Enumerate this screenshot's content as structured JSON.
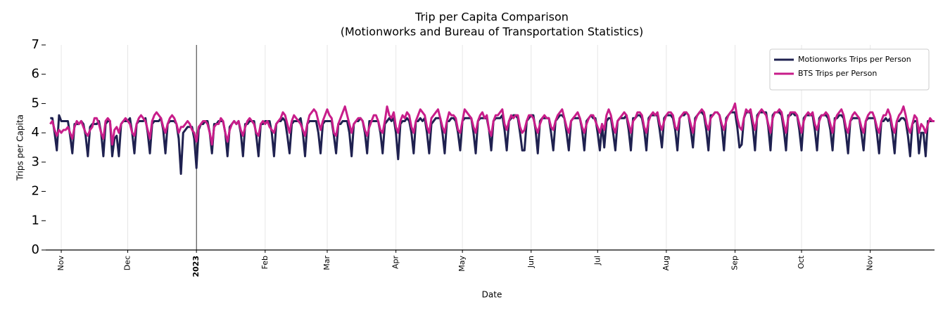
{
  "chart_data": {
    "type": "line",
    "title": "Trip per Capita Comparison",
    "subtitle": "(Motionworks and Bureau of Transportation Statistics)",
    "x_label": "Date",
    "y_label": "Trips per Capita",
    "xlim": [
      -2,
      399
    ],
    "ylim": [
      0,
      7
    ],
    "yticks": [
      0,
      1,
      2,
      3,
      4,
      5,
      6,
      7
    ],
    "xticks": [
      {
        "value": 5,
        "label": "Nov"
      },
      {
        "value": 35,
        "label": "Dec"
      },
      {
        "value": 66,
        "label": "2023"
      },
      {
        "value": 97,
        "label": "Feb"
      },
      {
        "value": 125,
        "label": "Mar"
      },
      {
        "value": 156,
        "label": "Apr"
      },
      {
        "value": 186,
        "label": "May"
      },
      {
        "value": 217,
        "label": "Jun"
      },
      {
        "value": 247,
        "label": "Jul"
      },
      {
        "value": 278,
        "label": "Aug"
      },
      {
        "value": 309,
        "label": "Sep"
      },
      {
        "value": 339,
        "label": "Oct"
      },
      {
        "value": 370,
        "label": "Nov"
      }
    ],
    "grid": true,
    "legend": "upper right",
    "series": [
      {
        "name": "Motionworks Trips per Person",
        "color": "#1f2150",
        "values": [
          4.5,
          4.5,
          4.0,
          3.4,
          4.6,
          4.4,
          4.4,
          4.4,
          4.4,
          3.9,
          3.3,
          4.3,
          4.3,
          4.3,
          4.4,
          4.3,
          3.9,
          3.2,
          4.2,
          4.3,
          4.3,
          4.3,
          4.4,
          4.0,
          3.2,
          4.3,
          4.4,
          4.4,
          3.2,
          3.8,
          3.9,
          3.2,
          4.3,
          4.4,
          4.4,
          4.4,
          4.5,
          4.0,
          3.3,
          4.3,
          4.4,
          4.4,
          4.4,
          4.5,
          4.0,
          3.3,
          4.3,
          4.4,
          4.4,
          4.4,
          4.5,
          4.1,
          3.3,
          4.3,
          4.4,
          4.4,
          4.4,
          4.3,
          3.8,
          2.6,
          4.0,
          4.1,
          4.2,
          4.2,
          4.2,
          3.8,
          2.8,
          4.1,
          4.3,
          4.3,
          4.4,
          4.4,
          4.0,
          3.3,
          4.3,
          4.3,
          4.4,
          4.4,
          4.4,
          4.0,
          3.2,
          4.2,
          4.3,
          4.4,
          4.3,
          4.4,
          4.0,
          3.2,
          4.3,
          4.3,
          4.4,
          4.4,
          4.4,
          3.9,
          3.2,
          4.3,
          4.3,
          4.4,
          4.4,
          4.4,
          4.0,
          3.2,
          4.3,
          4.4,
          4.4,
          4.5,
          4.4,
          3.9,
          3.3,
          4.3,
          4.4,
          4.4,
          4.4,
          4.5,
          4.0,
          3.2,
          4.3,
          4.4,
          4.4,
          4.4,
          4.4,
          4.0,
          3.3,
          4.3,
          4.4,
          4.4,
          4.4,
          4.4,
          3.9,
          3.3,
          4.3,
          4.3,
          4.4,
          4.4,
          4.4,
          4.0,
          3.2,
          4.3,
          4.4,
          4.4,
          4.5,
          4.4,
          4.0,
          3.3,
          4.4,
          4.4,
          4.4,
          4.4,
          4.4,
          4.0,
          3.3,
          4.3,
          4.4,
          4.5,
          4.4,
          4.5,
          4.0,
          3.1,
          4.3,
          4.4,
          4.4,
          4.5,
          4.4,
          4.0,
          3.3,
          4.4,
          4.4,
          4.5,
          4.4,
          4.5,
          4.0,
          3.3,
          4.3,
          4.4,
          4.5,
          4.5,
          4.5,
          4.0,
          3.3,
          4.4,
          4.4,
          4.5,
          4.5,
          4.4,
          4.0,
          3.4,
          4.4,
          4.5,
          4.5,
          4.5,
          4.5,
          4.0,
          3.3,
          4.4,
          4.5,
          4.5,
          4.5,
          4.5,
          4.1,
          3.4,
          4.4,
          4.5,
          4.5,
          4.5,
          4.6,
          4.1,
          3.4,
          4.4,
          4.5,
          4.6,
          4.6,
          4.5,
          4.0,
          3.4,
          3.4,
          4.4,
          4.5,
          4.6,
          4.6,
          4.1,
          3.3,
          4.4,
          4.5,
          4.5,
          4.5,
          4.5,
          4.0,
          3.4,
          4.4,
          4.5,
          4.6,
          4.6,
          4.5,
          4.0,
          3.4,
          4.4,
          4.5,
          4.5,
          4.5,
          4.5,
          4.1,
          3.4,
          4.4,
          4.5,
          4.6,
          4.5,
          4.5,
          4.0,
          3.4,
          4.3,
          3.5,
          4.4,
          4.5,
          4.5,
          4.0,
          3.4,
          4.4,
          4.5,
          4.5,
          4.5,
          4.6,
          4.1,
          3.4,
          4.5,
          4.5,
          4.6,
          4.6,
          4.5,
          4.1,
          3.4,
          4.5,
          4.6,
          4.6,
          4.6,
          4.6,
          4.1,
          3.5,
          4.5,
          4.6,
          4.6,
          4.6,
          4.5,
          4.1,
          3.4,
          4.5,
          4.6,
          4.6,
          4.7,
          4.6,
          4.1,
          3.5,
          4.5,
          4.6,
          4.7,
          4.7,
          4.6,
          4.1,
          3.4,
          4.6,
          4.6,
          4.7,
          4.7,
          4.6,
          4.2,
          3.4,
          4.5,
          4.6,
          4.7,
          4.7,
          4.7,
          4.2,
          3.5,
          3.6,
          4.5,
          4.7,
          4.7,
          4.7,
          4.2,
          3.4,
          4.6,
          4.7,
          4.7,
          4.7,
          4.7,
          4.2,
          3.4,
          4.6,
          4.7,
          4.7,
          4.7,
          4.6,
          4.1,
          3.4,
          4.6,
          4.6,
          4.7,
          4.6,
          4.6,
          4.1,
          3.4,
          4.5,
          4.6,
          4.6,
          4.6,
          4.6,
          4.1,
          3.4,
          4.5,
          4.6,
          4.6,
          4.6,
          4.5,
          4.1,
          3.4,
          4.5,
          4.5,
          4.6,
          4.6,
          4.5,
          4.0,
          3.3,
          4.4,
          4.5,
          4.5,
          4.5,
          4.5,
          4.0,
          3.4,
          4.4,
          4.5,
          4.5,
          4.5,
          4.5,
          4.0,
          3.3,
          4.4,
          4.4,
          4.5,
          4.4,
          4.5,
          4.0,
          3.3,
          4.4,
          4.4,
          4.5,
          4.5,
          4.4,
          3.9,
          3.2,
          4.3,
          4.4,
          4.4,
          3.3,
          4.0,
          4.0,
          3.2,
          4.4,
          4.4,
          4.4,
          4.4
        ]
      },
      {
        "name": "BTS Trips per Person",
        "color": "#c81d8a",
        "values": [
          4.3,
          4.4,
          4.1,
          3.9,
          4.1,
          4.0,
          4.1,
          4.1,
          4.2,
          4.0,
          3.8,
          4.2,
          4.4,
          4.3,
          4.4,
          4.2,
          4.0,
          3.9,
          4.1,
          4.2,
          4.5,
          4.5,
          4.3,
          4.0,
          3.8,
          4.4,
          4.5,
          4.4,
          3.6,
          4.1,
          4.2,
          4.0,
          4.3,
          4.4,
          4.5,
          4.4,
          4.3,
          4.0,
          3.9,
          4.3,
          4.5,
          4.6,
          4.5,
          4.4,
          4.1,
          3.8,
          4.4,
          4.6,
          4.7,
          4.6,
          4.5,
          4.2,
          4.0,
          4.3,
          4.5,
          4.6,
          4.5,
          4.3,
          4.0,
          4.2,
          4.2,
          4.3,
          4.4,
          4.3,
          4.1,
          4.0,
          3.7,
          4.2,
          4.3,
          4.4,
          4.4,
          4.3,
          4.0,
          3.6,
          4.2,
          4.3,
          4.3,
          4.5,
          4.4,
          4.0,
          3.7,
          4.1,
          4.3,
          4.4,
          4.3,
          4.4,
          4.1,
          3.9,
          4.2,
          4.4,
          4.5,
          4.4,
          4.3,
          4.0,
          3.9,
          4.3,
          4.4,
          4.3,
          4.4,
          4.2,
          4.1,
          4.0,
          4.3,
          4.4,
          4.5,
          4.7,
          4.6,
          4.3,
          4.0,
          4.4,
          4.6,
          4.5,
          4.4,
          4.3,
          4.1,
          3.9,
          4.3,
          4.6,
          4.7,
          4.8,
          4.7,
          4.4,
          4.1,
          4.4,
          4.6,
          4.8,
          4.6,
          4.5,
          4.0,
          3.9,
          4.3,
          4.5,
          4.7,
          4.9,
          4.6,
          4.3,
          4.0,
          4.3,
          4.4,
          4.5,
          4.5,
          4.4,
          4.1,
          3.9,
          4.2,
          4.4,
          4.6,
          4.6,
          4.4,
          4.1,
          4.0,
          4.4,
          4.9,
          4.6,
          4.5,
          4.7,
          4.2,
          4.0,
          4.4,
          4.6,
          4.5,
          4.7,
          4.6,
          4.2,
          4.0,
          4.4,
          4.6,
          4.8,
          4.7,
          4.6,
          4.2,
          4.0,
          4.5,
          4.6,
          4.7,
          4.8,
          4.5,
          4.2,
          4.0,
          4.4,
          4.7,
          4.6,
          4.6,
          4.5,
          4.1,
          4.0,
          4.4,
          4.8,
          4.7,
          4.6,
          4.5,
          4.2,
          4.0,
          4.4,
          4.6,
          4.7,
          4.5,
          4.6,
          4.1,
          3.9,
          4.4,
          4.6,
          4.6,
          4.7,
          4.8,
          4.3,
          4.1,
          4.4,
          4.6,
          4.5,
          4.6,
          4.6,
          4.2,
          4.0,
          4.1,
          4.4,
          4.6,
          4.6,
          4.5,
          4.2,
          4.0,
          4.3,
          4.5,
          4.6,
          4.5,
          4.5,
          4.2,
          4.1,
          4.4,
          4.6,
          4.7,
          4.8,
          4.5,
          4.2,
          4.0,
          4.4,
          4.5,
          4.6,
          4.7,
          4.5,
          4.2,
          4.0,
          4.3,
          4.5,
          4.6,
          4.6,
          4.4,
          4.2,
          4.0,
          4.3,
          4.1,
          4.6,
          4.8,
          4.6,
          4.2,
          4.0,
          4.4,
          4.5,
          4.6,
          4.7,
          4.6,
          4.3,
          4.0,
          4.4,
          4.5,
          4.7,
          4.7,
          4.6,
          4.2,
          4.0,
          4.4,
          4.6,
          4.7,
          4.6,
          4.7,
          4.3,
          4.1,
          4.4,
          4.6,
          4.7,
          4.7,
          4.6,
          4.2,
          4.1,
          4.5,
          4.6,
          4.7,
          4.7,
          4.6,
          4.3,
          4.0,
          4.4,
          4.6,
          4.7,
          4.8,
          4.7,
          4.3,
          4.1,
          4.5,
          4.6,
          4.7,
          4.7,
          4.6,
          4.3,
          4.1,
          4.4,
          4.6,
          4.7,
          4.8,
          5.0,
          4.5,
          4.2,
          4.1,
          4.5,
          4.8,
          4.7,
          4.8,
          4.4,
          4.1,
          4.5,
          4.7,
          4.8,
          4.7,
          4.6,
          4.3,
          4.0,
          4.5,
          4.7,
          4.7,
          4.8,
          4.7,
          4.3,
          4.0,
          4.5,
          4.7,
          4.7,
          4.7,
          4.6,
          4.3,
          4.0,
          4.4,
          4.6,
          4.7,
          4.6,
          4.7,
          4.3,
          4.1,
          4.4,
          4.6,
          4.6,
          4.7,
          4.6,
          4.3,
          4.0,
          4.4,
          4.6,
          4.7,
          4.8,
          4.6,
          4.2,
          4.0,
          4.4,
          4.6,
          4.7,
          4.6,
          4.5,
          4.2,
          4.0,
          4.4,
          4.6,
          4.7,
          4.7,
          4.5,
          4.2,
          4.0,
          4.4,
          4.6,
          4.6,
          4.8,
          4.6,
          4.2,
          4.0,
          4.4,
          4.6,
          4.7,
          4.9,
          4.6,
          4.2,
          4.0,
          4.3,
          4.6,
          4.5,
          4.0,
          4.3,
          4.2,
          4.0,
          4.3,
          4.5,
          4.4,
          4.4
        ]
      }
    ]
  }
}
